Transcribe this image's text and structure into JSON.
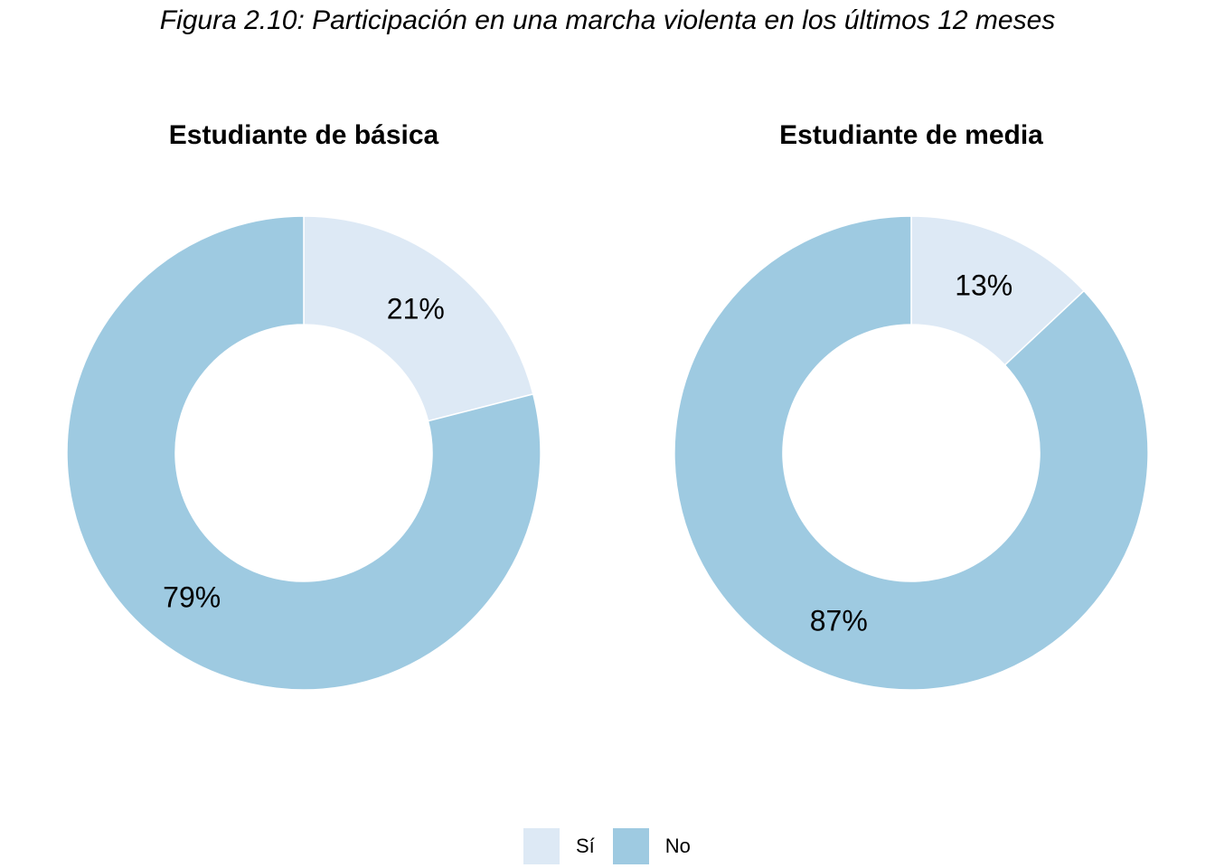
{
  "figure_title": "Figura 2.10: Participación en una marcha violenta en los últimos 12 meses",
  "colors": {
    "si": "#dde9f5",
    "no": "#9ecae1"
  },
  "chart_data": [
    {
      "type": "pie",
      "donut": true,
      "title": "Estudiante de básica",
      "categories": [
        "Sí",
        "No"
      ],
      "values": [
        21,
        79
      ],
      "labels": [
        "21%",
        "79%"
      ]
    },
    {
      "type": "pie",
      "donut": true,
      "title": "Estudiante de media",
      "categories": [
        "Sí",
        "No"
      ],
      "values": [
        13,
        87
      ],
      "labels": [
        "13%",
        "87%"
      ]
    }
  ],
  "legend": {
    "position": "bottom",
    "items": [
      {
        "label": "Sí",
        "color": "#dde9f5"
      },
      {
        "label": "No",
        "color": "#9ecae1"
      }
    ]
  }
}
